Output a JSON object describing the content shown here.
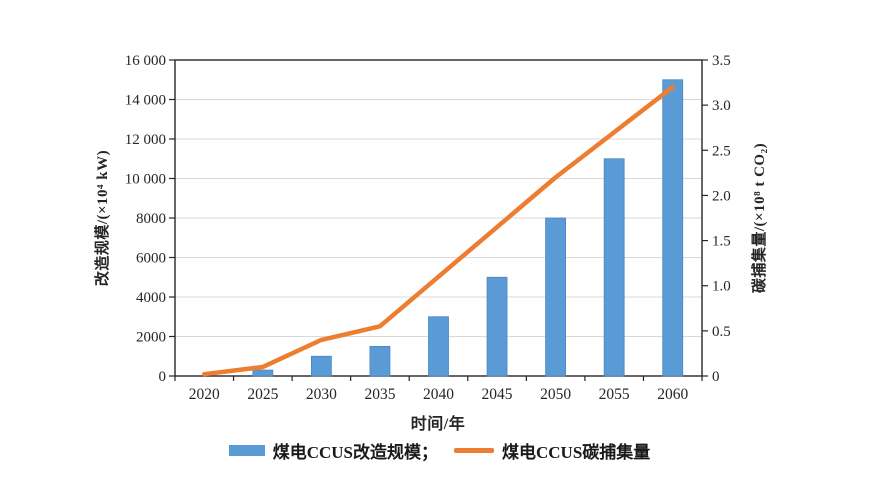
{
  "chart_data": {
    "type": "combo-bar-line",
    "categories": [
      "2020",
      "2025",
      "2030",
      "2035",
      "2040",
      "2045",
      "2050",
      "2055",
      "2060"
    ],
    "series": [
      {
        "name": "煤电CCUS改造规模",
        "type": "bar",
        "axis": "left",
        "values": [
          0,
          300,
          1000,
          1500,
          3000,
          5000,
          8000,
          11000,
          15000
        ]
      },
      {
        "name": "煤电CCUS碳捕集量",
        "type": "line",
        "axis": "right",
        "values": [
          0.02,
          0.1,
          0.4,
          0.55,
          1.1,
          1.65,
          2.2,
          2.7,
          3.2
        ]
      }
    ],
    "left_axis": {
      "title": "改造规模/(×10⁴ kW)",
      "min": 0,
      "max": 16000,
      "tick_step": 2000,
      "tick_labels": [
        "0",
        "2000",
        "4000",
        "6000",
        "8000",
        "10 000",
        "12 000",
        "14 000",
        "16 000"
      ]
    },
    "right_axis": {
      "title": "碳捕集量/(×10⁸ t CO₂)",
      "min": 0,
      "max": 3.5,
      "tick_step": 0.5,
      "tick_labels": [
        "0",
        "0.5",
        "1.0",
        "1.5",
        "2.0",
        "2.5",
        "3.0",
        "3.5"
      ]
    },
    "xlabel": "时间/年",
    "legend": [
      "煤电CCUS改造规模；",
      "煤电CCUS碳捕集量"
    ],
    "legend_position": "bottom",
    "grid": true,
    "colors": {
      "bar": "#5B9BD5",
      "bar_edge": "#4A86C0",
      "line": "#ED7D31",
      "grid": "#D9D9D9",
      "axis": "#262626",
      "text": "#262626"
    }
  }
}
